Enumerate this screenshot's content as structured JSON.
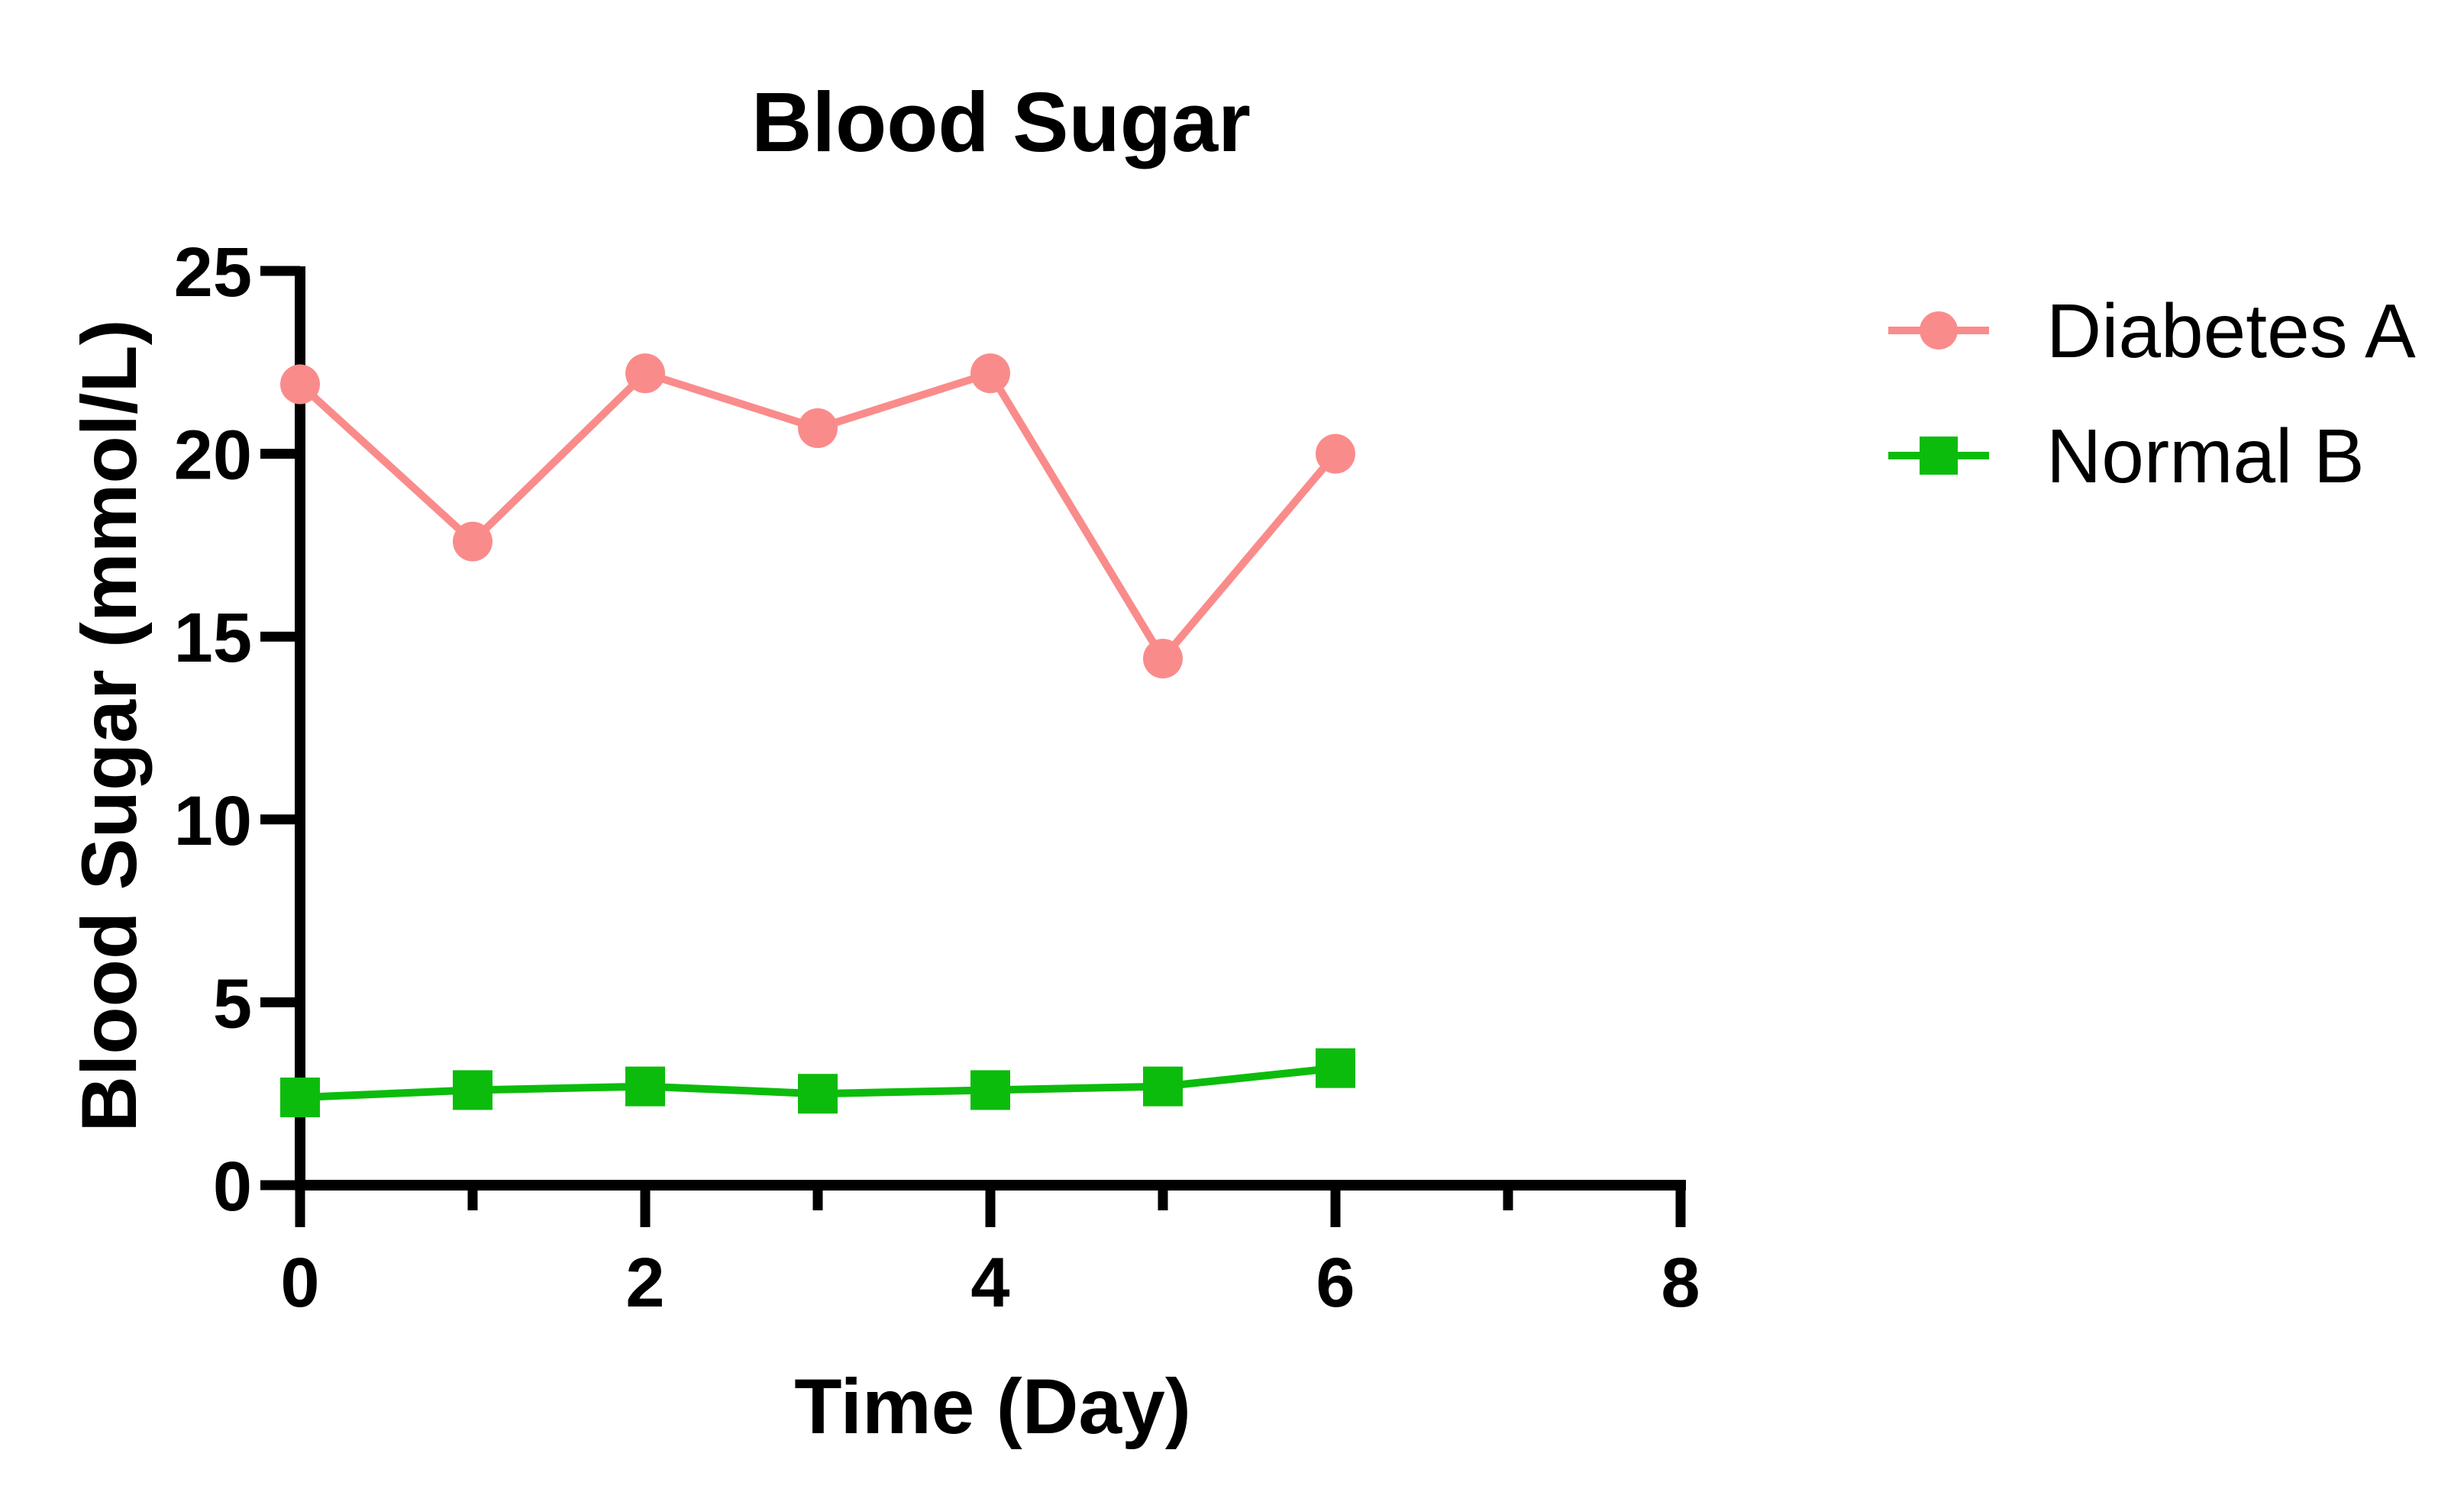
{
  "chart_data": {
    "type": "line",
    "title": "Blood Sugar",
    "xlabel": "Time (Day)",
    "ylabel": "Blood Sugar (mmol/L)",
    "x": [
      0,
      1,
      2,
      3,
      4,
      5,
      6
    ],
    "series": [
      {
        "name": "Diabetes A",
        "marker": "circle",
        "color": "#FA8B8B",
        "values": [
          21.9,
          17.6,
          22.2,
          20.7,
          22.2,
          14.4,
          20.0
        ]
      },
      {
        "name": "Normal B",
        "marker": "square",
        "color": "#0CBC0C",
        "values": [
          2.4,
          2.6,
          2.7,
          2.5,
          2.6,
          2.7,
          3.2
        ]
      }
    ],
    "xlim": [
      0,
      8
    ],
    "ylim": [
      0,
      25
    ],
    "x_major_ticks": [
      0,
      2,
      4,
      6,
      8
    ],
    "x_minor_ticks": [
      1,
      3,
      5,
      7
    ],
    "y_ticks": [
      0,
      5,
      10,
      15,
      20,
      25
    ],
    "grid": false,
    "legend_position": "right",
    "axis_color": "#000000",
    "background_color": "#FFFFFF"
  }
}
